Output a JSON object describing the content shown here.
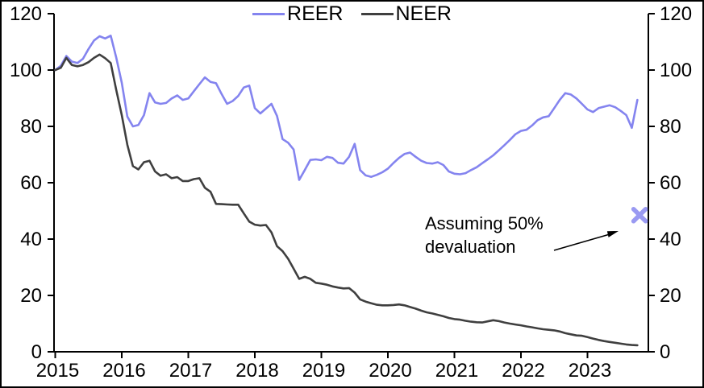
{
  "chart_data": {
    "type": "line",
    "title": "",
    "x_axis": {
      "tick_labels": [
        "2015",
        "2016",
        "2017",
        "2018",
        "2019",
        "2020",
        "2021",
        "2022",
        "2023"
      ],
      "frequency": "monthly",
      "start": "2015-01",
      "end": "2023-10"
    },
    "y_axis": {
      "min": 0,
      "max": 120,
      "left_tick_labels": [
        "0",
        "20",
        "40",
        "60",
        "80",
        "100",
        "120"
      ],
      "right_tick_labels": [
        "0",
        "20",
        "40",
        "60",
        "80",
        "100",
        "120"
      ],
      "grid": false
    },
    "series": [
      {
        "name": "REER",
        "color": "#8484ef",
        "values": [
          100,
          101.5,
          105,
          103,
          102.5,
          104,
          107.5,
          110.5,
          112,
          111.2,
          112.2,
          104.5,
          95.5,
          83.5,
          80,
          80.5,
          84,
          91.8,
          88.5,
          88,
          88.3,
          89.9,
          91,
          89.4,
          89.9,
          92.5,
          95,
          97.4,
          95.8,
          95.3,
          91.5,
          88,
          89,
          90.8,
          93.8,
          94.5,
          86.5,
          84.6,
          86.3,
          88,
          83.7,
          75.5,
          74.2,
          71.8,
          61,
          64.5,
          68.1,
          68.3,
          68,
          69.2,
          68.8,
          67.1,
          66.8,
          69.2,
          73.8,
          64.5,
          62.6,
          62.1,
          62.8,
          63.7,
          65,
          67,
          68.8,
          70.2,
          70.7,
          69.2,
          67.8,
          67,
          66.8,
          67.3,
          66.3,
          64,
          63.2,
          63,
          63.4,
          64.5,
          65.5,
          66.9,
          68.3,
          69.7,
          71.5,
          73.3,
          75.2,
          77.2,
          78.4,
          78.8,
          80.3,
          82.2,
          83.2,
          83.6,
          86.5,
          89.4,
          91.8,
          91.3,
          89.9,
          88,
          86,
          85.1,
          86.5,
          87,
          87.5,
          86.8,
          85.5,
          84,
          79.5,
          89.4
        ]
      },
      {
        "name": "NEER",
        "color": "#3f3f3f",
        "values": [
          100,
          100.8,
          104.3,
          101.8,
          101.3,
          101.8,
          102.8,
          104.3,
          105.5,
          104.2,
          102.5,
          93,
          84,
          73.5,
          65.9,
          64.7,
          67.3,
          67.8,
          64,
          62.5,
          63,
          61.6,
          62,
          60.6,
          60.6,
          61.3,
          61.6,
          58.2,
          56.8,
          52.5,
          52.4,
          52.3,
          52.2,
          52.2,
          49.1,
          46.2,
          45.1,
          44.8,
          45,
          42.4,
          37.5,
          35.7,
          33,
          29.5,
          25.9,
          26.6,
          25.9,
          24.5,
          24.2,
          23.8,
          23.2,
          22.8,
          22.5,
          22.6,
          21,
          18.6,
          17.8,
          17.2,
          16.7,
          16.5,
          16.5,
          16.6,
          16.8,
          16.5,
          15.9,
          15.3,
          14.6,
          14,
          13.6,
          13.1,
          12.6,
          12,
          11.6,
          11.4,
          11,
          10.7,
          10.5,
          10.4,
          10.8,
          11.2,
          10.9,
          10.4,
          10,
          9.7,
          9.4,
          9,
          8.7,
          8.3,
          8,
          7.8,
          7.6,
          7.2,
          6.6,
          6.2,
          5.8,
          5.7,
          5.2,
          4.7,
          4.2,
          3.8,
          3.5,
          3.2,
          2.9,
          2.6,
          2.4,
          2.3
        ]
      }
    ],
    "scenario_marker": {
      "shape": "x-cross",
      "color": "#9a9af2",
      "value": 48.5,
      "month_index": 105.4,
      "meaning": "Assuming 50% devaluation"
    },
    "annotation": {
      "line1": "Assuming 50%",
      "line2": "devaluation"
    }
  },
  "legend": {
    "position": "top-center",
    "items": [
      {
        "label": "REER",
        "color": "#8484ef"
      },
      {
        "label": "NEER",
        "color": "#3f3f3f"
      }
    ]
  }
}
